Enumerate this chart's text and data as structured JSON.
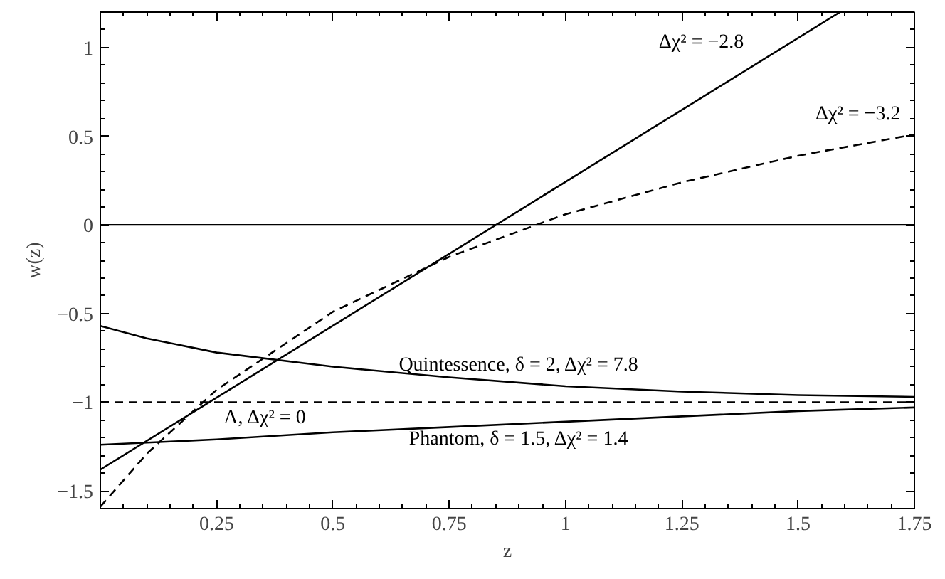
{
  "chart_data": {
    "type": "line",
    "xlabel": "z",
    "ylabel": "w(z)",
    "xlim": [
      0,
      1.75
    ],
    "ylim": [
      -1.6,
      1.2
    ],
    "xticks": [
      0.25,
      0.5,
      0.75,
      1,
      1.25,
      1.5,
      1.75
    ],
    "yticks": [
      -1.5,
      -1,
      -0.5,
      0,
      0.5,
      1
    ],
    "grid": false,
    "annotations": [
      {
        "text": "Δχ² = −2.8",
        "x": 1.42,
        "y": 0.92
      },
      {
        "text": "Δχ² = −3.2",
        "x": 1.72,
        "y": 0.5
      },
      {
        "text": "Quintessence, δ = 2, Δχ² = 7.8",
        "x": 0.9,
        "y": -0.9
      },
      {
        "text": "Λ, Δχ² = 0",
        "x": 0.45,
        "y": -1
      },
      {
        "text": "Phantom, δ = 1.5, Δχ² = 1.4",
        "x": 0.9,
        "y": -1.11
      }
    ],
    "ref_lines": [
      {
        "axis": "y",
        "value": 0,
        "color": "#000000",
        "line_style": "solid"
      }
    ],
    "series": [
      {
        "color": "#000000",
        "line_style": "solid",
        "x": [
          0,
          1.59
        ],
        "values": [
          -1.38,
          1.2
        ]
      },
      {
        "color": "#000000",
        "line_style": "dashed",
        "x": [
          0,
          0.1,
          0.25,
          0.5,
          0.75,
          1,
          1.25,
          1.5,
          1.75
        ],
        "values": [
          -1.59,
          -1.29,
          -0.93,
          -0.49,
          -0.18,
          0.06,
          0.24,
          0.39,
          0.51
        ]
      },
      {
        "color": "#000000",
        "line_style": "solid",
        "x": [
          0,
          0.1,
          0.25,
          0.5,
          0.75,
          1,
          1.25,
          1.5,
          1.75
        ],
        "values": [
          -0.57,
          -0.64,
          -0.72,
          -0.8,
          -0.86,
          -0.91,
          -0.94,
          -0.96,
          -0.97
        ]
      },
      {
        "color": "#000000",
        "line_style": "dashed",
        "x": [
          0,
          1.75
        ],
        "values": [
          -1,
          -1
        ]
      },
      {
        "color": "#000000",
        "line_style": "solid",
        "x": [
          0,
          0.25,
          0.5,
          0.75,
          1,
          1.25,
          1.5,
          1.75
        ],
        "values": [
          -1.24,
          -1.21,
          -1.17,
          -1.14,
          -1.11,
          -1.08,
          -1.05,
          -1.03
        ]
      }
    ]
  }
}
